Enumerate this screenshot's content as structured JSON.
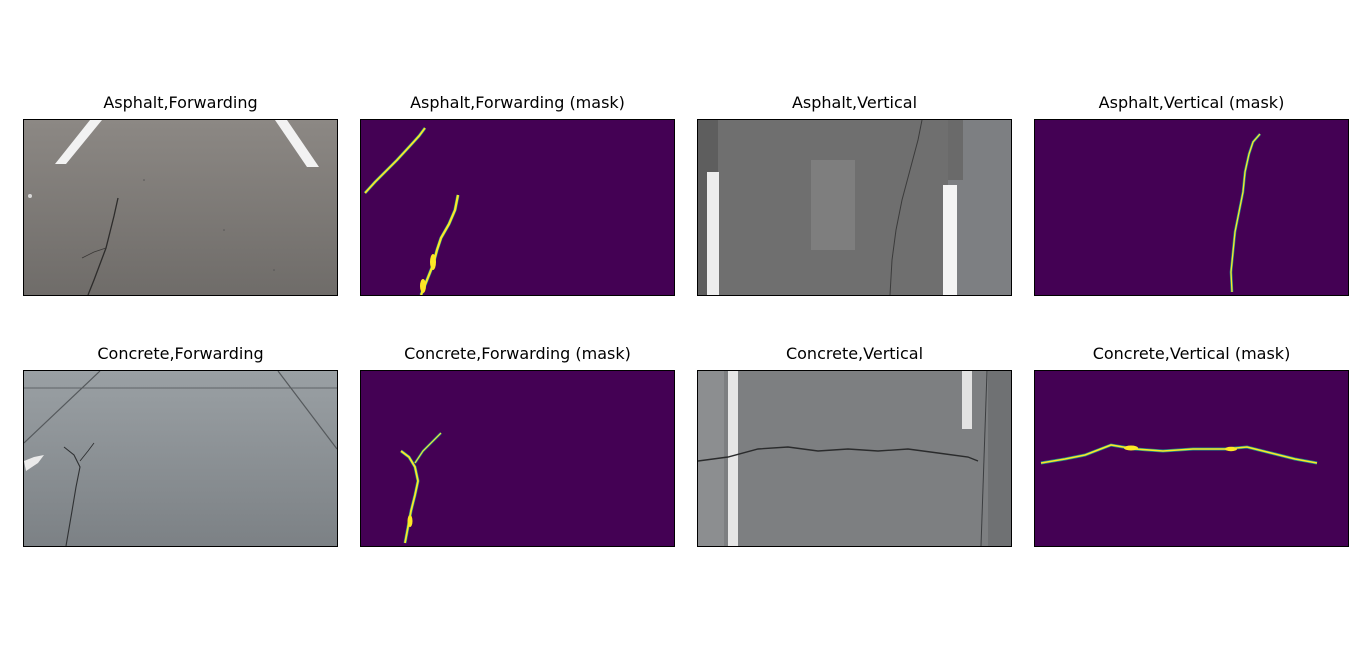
{
  "figure": {
    "panels": [
      {
        "title": "Asphalt,Forwarding",
        "image": "asphalt-forward-road-photo"
      },
      {
        "title": "Asphalt,Forwarding (mask)",
        "image": "crack-mask"
      },
      {
        "title": "Asphalt,Vertical",
        "image": "asphalt-vertical-road-photo"
      },
      {
        "title": "Asphalt,Vertical (mask)",
        "image": "crack-mask"
      },
      {
        "title": "Concrete,Forwarding",
        "image": "concrete-forward-road-photo"
      },
      {
        "title": "Concrete,Forwarding (mask)",
        "image": "crack-mask"
      },
      {
        "title": "Concrete,Vertical",
        "image": "concrete-vertical-road-photo"
      },
      {
        "title": "Concrete,Vertical (mask)",
        "image": "crack-mask"
      }
    ],
    "colors": {
      "mask_background": "#440154",
      "mask_crack": "#fde725",
      "mask_edge": "#21918c",
      "asphalt": "#7a7875",
      "concrete": "#8a8e90",
      "lane_paint": "#f2f2f2"
    }
  }
}
